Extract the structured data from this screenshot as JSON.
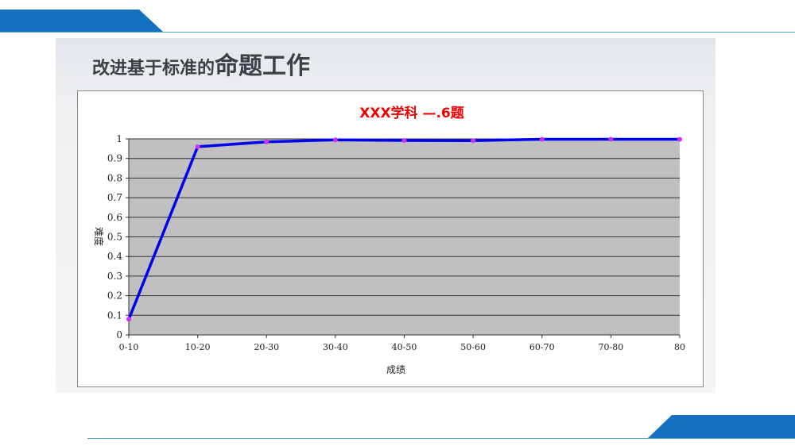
{
  "slide": {
    "title_small": "改进基于标准的",
    "title_big": "命题工作"
  },
  "colors": {
    "accent": "#1570c0",
    "line": "#0000ee",
    "marker": "#cc33ff",
    "plot_bg": "#c0c0c0",
    "title": "#ee0000"
  },
  "chart_data": {
    "type": "line",
    "title": "XXX学科 —.6题",
    "xlabel": "成绩",
    "ylabel": "难度",
    "categories": [
      "0-10",
      "10-20",
      "20-30",
      "30-40",
      "40-50",
      "50-60",
      "60-70",
      "70-80",
      "80"
    ],
    "values": [
      0.08,
      0.96,
      0.985,
      0.995,
      0.992,
      0.991,
      0.998,
      0.998,
      0.998
    ],
    "ylim": [
      0,
      1
    ],
    "yticks": [
      "0",
      "0.1",
      "0.2",
      "0.3",
      "0.4",
      "0.5",
      "0.6",
      "0.7",
      "0.8",
      "0.9",
      "1"
    ],
    "grid": true,
    "legend": "none"
  }
}
